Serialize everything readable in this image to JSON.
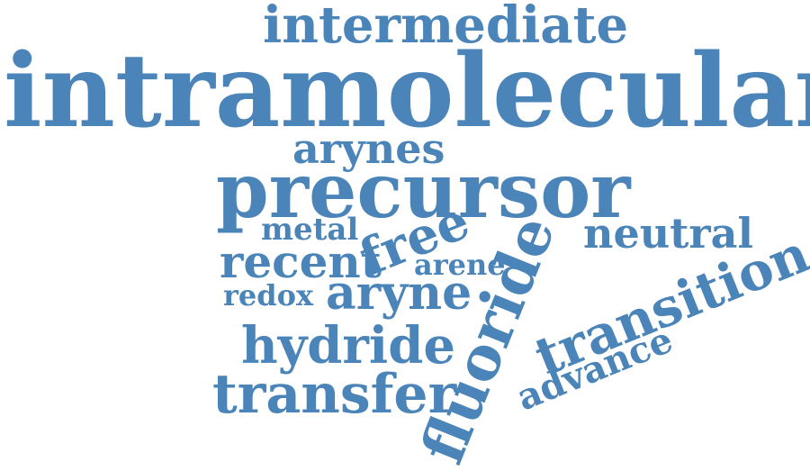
{
  "colors": {
    "word": "#4a84b8",
    "background": "#ffffff"
  },
  "words": [
    {
      "text": "intermediate",
      "rotation": "horizontal"
    },
    {
      "text": "intramolecular",
      "rotation": "horizontal"
    },
    {
      "text": "arynes",
      "rotation": "horizontal"
    },
    {
      "text": "precursor",
      "rotation": "horizontal"
    },
    {
      "text": "metal",
      "rotation": "horizontal"
    },
    {
      "text": "free",
      "rotation": "tilted"
    },
    {
      "text": "neutral",
      "rotation": "horizontal"
    },
    {
      "text": "recent",
      "rotation": "horizontal"
    },
    {
      "text": "arene",
      "rotation": "horizontal"
    },
    {
      "text": "redox",
      "rotation": "horizontal"
    },
    {
      "text": "aryne",
      "rotation": "horizontal"
    },
    {
      "text": "fluoride",
      "rotation": "tilted"
    },
    {
      "text": "transition",
      "rotation": "tilted"
    },
    {
      "text": "hydride",
      "rotation": "horizontal"
    },
    {
      "text": "advance",
      "rotation": "tilted"
    },
    {
      "text": "transfer",
      "rotation": "horizontal"
    }
  ]
}
